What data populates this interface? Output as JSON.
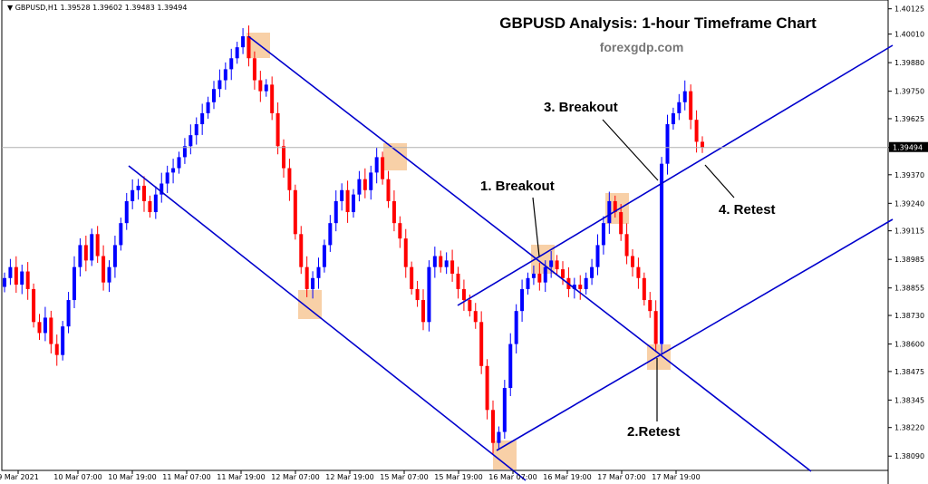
{
  "header": {
    "instrument_line": "▼ GBPUSD,H1  1.39528 1.39602 1.39483 1.39494"
  },
  "title": "GBPUSD Analysis: 1-hour Timeframe Chart",
  "site": "forexgdp.com",
  "current_price_label": "1.39494",
  "colors": {
    "bull": "#0000ff",
    "bear": "#ff0000",
    "trendline": "#0000cd",
    "highlight": "#f5c08a",
    "price_line": "#b0b0b0"
  },
  "annotations": [
    {
      "id": "breakout-1",
      "text": "1. Breakout"
    },
    {
      "id": "retest-2",
      "text": "2.Retest"
    },
    {
      "id": "breakout-3",
      "text": "3. Breakout"
    },
    {
      "id": "retest-4",
      "text": "4. Retest"
    }
  ],
  "chart_data": {
    "type": "candlestick",
    "title": "GBPUSD Analysis: 1-hour Timeframe Chart",
    "symbol": "GBPUSD",
    "timeframe": "H1",
    "ylim": [
      1.38025,
      1.40165
    ],
    "y_ticks": [
      "1.40125",
      "1.40010",
      "1.39880",
      "1.39750",
      "1.39625",
      "1.39494",
      "1.39370",
      "1.39240",
      "1.39115",
      "1.38985",
      "1.38855",
      "1.38730",
      "1.38600",
      "1.38475",
      "1.38345",
      "1.38220",
      "1.38090"
    ],
    "x_ticks": [
      "9 Mar 2021",
      "10 Mar 07:00",
      "10 Mar 19:00",
      "11 Mar 07:00",
      "11 Mar 19:00",
      "12 Mar 07:00",
      "12 Mar 19:00",
      "15 Mar 07:00",
      "15 Mar 19:00",
      "16 Mar 07:00",
      "16 Mar 19:00",
      "17 Mar 07:00",
      "17 Mar 19:00"
    ],
    "last_price": 1.39494,
    "candles_close": [
      1.389,
      1.3895,
      1.3887,
      1.3893,
      1.3885,
      1.387,
      1.3865,
      1.3872,
      1.386,
      1.3855,
      1.3868,
      1.388,
      1.3895,
      1.3905,
      1.3898,
      1.391,
      1.39,
      1.3888,
      1.3895,
      1.3905,
      1.3915,
      1.3925,
      1.393,
      1.3932,
      1.3925,
      1.392,
      1.3928,
      1.3933,
      1.3938,
      1.394,
      1.3945,
      1.395,
      1.3955,
      1.396,
      1.3965,
      1.397,
      1.3976,
      1.398,
      1.3985,
      1.399,
      1.3995,
      1.4,
      1.399,
      1.398,
      1.3975,
      1.3978,
      1.3965,
      1.395,
      1.394,
      1.393,
      1.391,
      1.3895,
      1.3885,
      1.389,
      1.3895,
      1.3905,
      1.3915,
      1.3925,
      1.393,
      1.392,
      1.3928,
      1.3935,
      1.393,
      1.3938,
      1.3945,
      1.3935,
      1.3925,
      1.3915,
      1.3908,
      1.3895,
      1.3885,
      1.388,
      1.387,
      1.3895,
      1.39,
      1.3895,
      1.3898,
      1.3892,
      1.3885,
      1.388,
      1.3875,
      1.387,
      1.385,
      1.383,
      1.3815,
      1.382,
      1.384,
      1.386,
      1.3875,
      1.3885,
      1.389,
      1.3892,
      1.3888,
      1.3895,
      1.3898,
      1.3894,
      1.389,
      1.3885,
      1.3887,
      1.3885,
      1.389,
      1.3895,
      1.3905,
      1.3915,
      1.3925,
      1.392,
      1.391,
      1.39,
      1.3895,
      1.389,
      1.388,
      1.3875,
      1.386,
      1.3942,
      1.396,
      1.3965,
      1.397,
      1.3975,
      1.3962,
      1.3952,
      1.39494
    ]
  }
}
